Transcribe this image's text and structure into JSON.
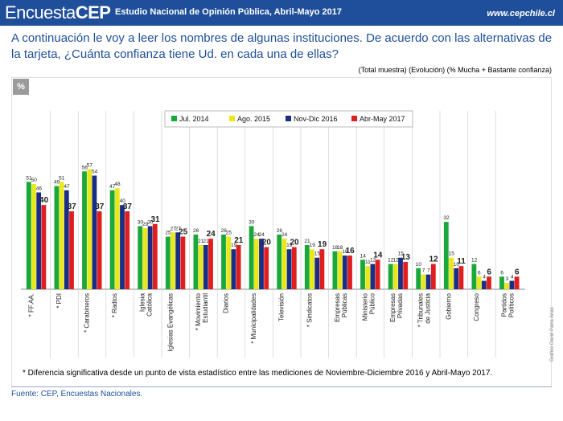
{
  "header": {
    "brand_part1": "Encuesta",
    "brand_part2": "CEP",
    "subtitle": "Estudio Nacional de Opinión Pública, Abril-Mayo 2017",
    "url": "www.cepchile.cl"
  },
  "question": "A continuación le voy a leer los nombres de algunas instituciones. De acuerdo con las alternativas de la tarjeta, ¿Cuánta confianza tiene Ud. en cada una de ellas?",
  "subtitle": "(Total muestra) (Evolución) (% Mucha + Bastante confianza)",
  "percent_badge": "%",
  "note": "* Diferencia significativa desde un punto de vista estadístico entre las mediciones de Noviembre-Diciembre 2016 y Abril-Mayo 2017.",
  "source": "Fuente: CEP, Encuestas Nacionales.",
  "credit": "Gráfico David Parra Arias",
  "colors": {
    "header_bg": "#1f4f9a",
    "series": [
      "#1aa83a",
      "#e8e81c",
      "#1a2e86",
      "#e01e1e"
    ]
  },
  "chart_data": {
    "type": "bar",
    "categories": [
      "* FF.AA.",
      "* PDI",
      "* Carabineros",
      "* Radios",
      "Iglesia Católica",
      "Iglesias Evangélicas",
      "* Movimiento Estudiantil",
      "Diarios",
      "* Municipalidades",
      "Televisión",
      "* Sindicatos",
      "Empresas Públicas",
      "Ministerio Público",
      "Empresas Privadas",
      "* Tribunales de Justicia",
      "Gobierno",
      "Congreso",
      "Partidos Políticos"
    ],
    "series": [
      {
        "name": "Jul. 2014",
        "values": [
          51,
          49,
          56,
          47,
          30,
          25,
          26,
          26,
          30,
          26,
          21,
          18,
          14,
          12,
          10,
          32,
          12,
          6
        ]
      },
      {
        "name": "Ago. 2015",
        "values": [
          50,
          51,
          57,
          48,
          29,
          27,
          21,
          25,
          24,
          24,
          19,
          18,
          11,
          12,
          7,
          15,
          6,
          3
        ]
      },
      {
        "name": "Nov-Dic 2016",
        "values": [
          46,
          47,
          54,
          40,
          30,
          27,
          21,
          19,
          24,
          19,
          15,
          16,
          12,
          15,
          7,
          10,
          4,
          4
        ]
      },
      {
        "name": "Abr-May 2017",
        "values": [
          40,
          37,
          37,
          37,
          31,
          25,
          24,
          21,
          20,
          20,
          19,
          16,
          14,
          13,
          12,
          11,
          6,
          6
        ]
      }
    ],
    "ylim": [
      0,
      70
    ],
    "legend": "top-center",
    "grid": false
  }
}
